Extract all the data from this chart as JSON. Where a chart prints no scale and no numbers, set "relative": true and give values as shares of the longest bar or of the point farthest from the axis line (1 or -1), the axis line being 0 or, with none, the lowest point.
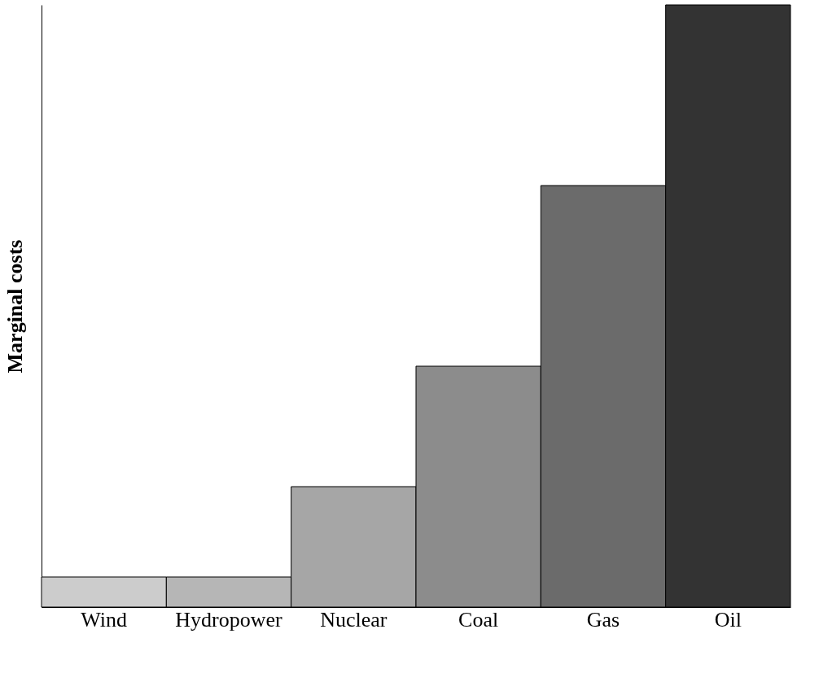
{
  "chart_data": {
    "type": "bar",
    "ylabel": "Marginal costs",
    "relative": true,
    "categories": [
      "Wind",
      "Hydropower",
      "Nuclear",
      "Coal",
      "Gas",
      "Oil"
    ],
    "values": [
      0.05,
      0.05,
      0.2,
      0.4,
      0.7,
      1
    ],
    "colors": [
      "#cccccc",
      "#b6b6b6",
      "#a6a6a6",
      "#8c8c8c",
      "#6b6b6b",
      "#333333"
    ],
    "grid": false
  }
}
